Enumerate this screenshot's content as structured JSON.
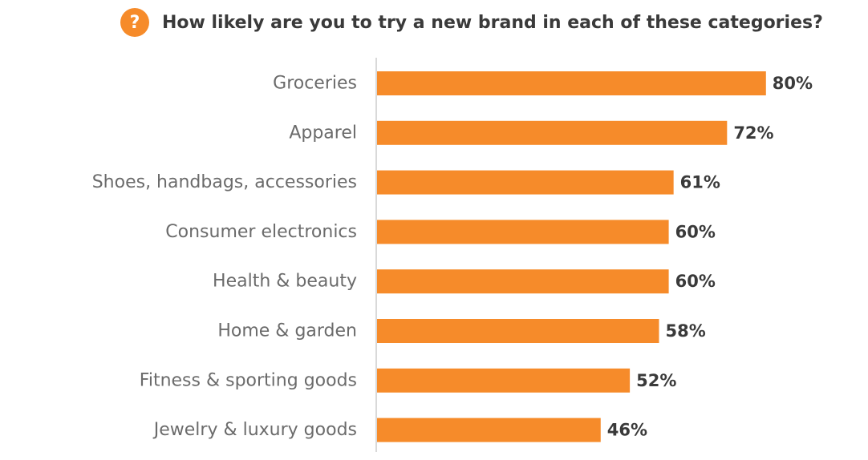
{
  "header": {
    "icon_glyph": "?",
    "icon_name": "question-icon"
  },
  "colors": {
    "accent": "#F68B2A",
    "axis": "#d9d9d9",
    "label_text": "#6b6b6b",
    "value_text": "#3a3a3a"
  },
  "chart_data": {
    "type": "bar",
    "orientation": "horizontal",
    "title": "How likely are you to try a new brand in each of these categories?",
    "categories": [
      "Groceries",
      "Apparel",
      "Shoes, handbags, accessories",
      "Consumer electronics",
      "Health & beauty",
      "Home & garden",
      "Fitness & sporting goods",
      "Jewelry & luxury goods"
    ],
    "values": [
      80,
      72,
      61,
      60,
      60,
      58,
      52,
      46
    ],
    "value_labels": [
      "80%",
      "72%",
      "61%",
      "60%",
      "60%",
      "58%",
      "52%",
      "46%"
    ],
    "unit": "%",
    "xlim": [
      0,
      100
    ],
    "grid": false,
    "legend": "none"
  }
}
